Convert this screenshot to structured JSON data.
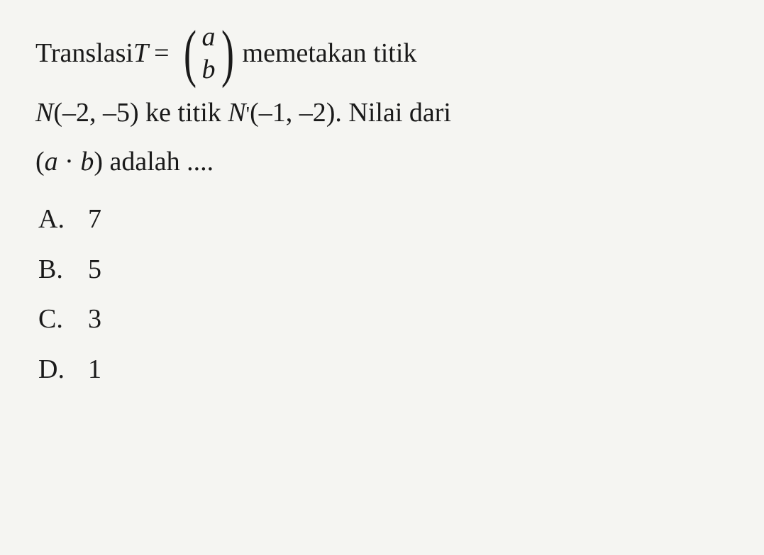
{
  "problem": {
    "line1_pre": "Translasi ",
    "var_T": "T",
    "equals": " = ",
    "matrix_top": "a",
    "matrix_bottom": "b",
    "line1_post": " memetakan titik",
    "line2_N": "N",
    "line2_coords": "(–2, –5) ke titik ",
    "line2_Nprime": "N",
    "line2_prime": "'",
    "line2_coords2": "(–1, –2). Nilai dari",
    "line3_open": "(",
    "line3_a": "a",
    "line3_dot": " · ",
    "line3_b": "b",
    "line3_close": ") adalah ...."
  },
  "options": {
    "a": {
      "letter": "A.",
      "value": "7"
    },
    "b": {
      "letter": "B.",
      "value": "5"
    },
    "c": {
      "letter": "C.",
      "value": "3"
    },
    "d": {
      "letter": "D.",
      "value": "1"
    }
  },
  "style": {
    "background_color": "#f5f5f2",
    "text_color": "#1a1a1a",
    "font_size_body": 38,
    "font_family": "Georgia, Times New Roman, serif"
  }
}
